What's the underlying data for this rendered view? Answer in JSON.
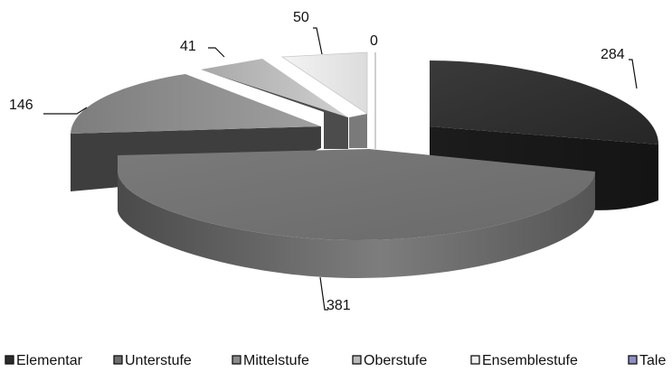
{
  "chart_data": {
    "type": "pie",
    "style": "3d-exploded",
    "categories": [
      "Elementar",
      "Unterstufe",
      "Mittelstufe",
      "Oberstufe",
      "Ensemblestufe",
      "Tale"
    ],
    "values": [
      284,
      381,
      146,
      41,
      50,
      0
    ],
    "legend": {
      "placement": "bottom",
      "entries": [
        "Elementar",
        "Unterstufe",
        "Mittelstufe",
        "Oberstufe",
        "Ensemblestufe",
        "Tale"
      ]
    },
    "colors": [
      "#2b2b2b",
      "#6e6e6e",
      "#8a8a8a",
      "#b9b9b9",
      "#efefef",
      "#8f8fc4"
    ]
  }
}
